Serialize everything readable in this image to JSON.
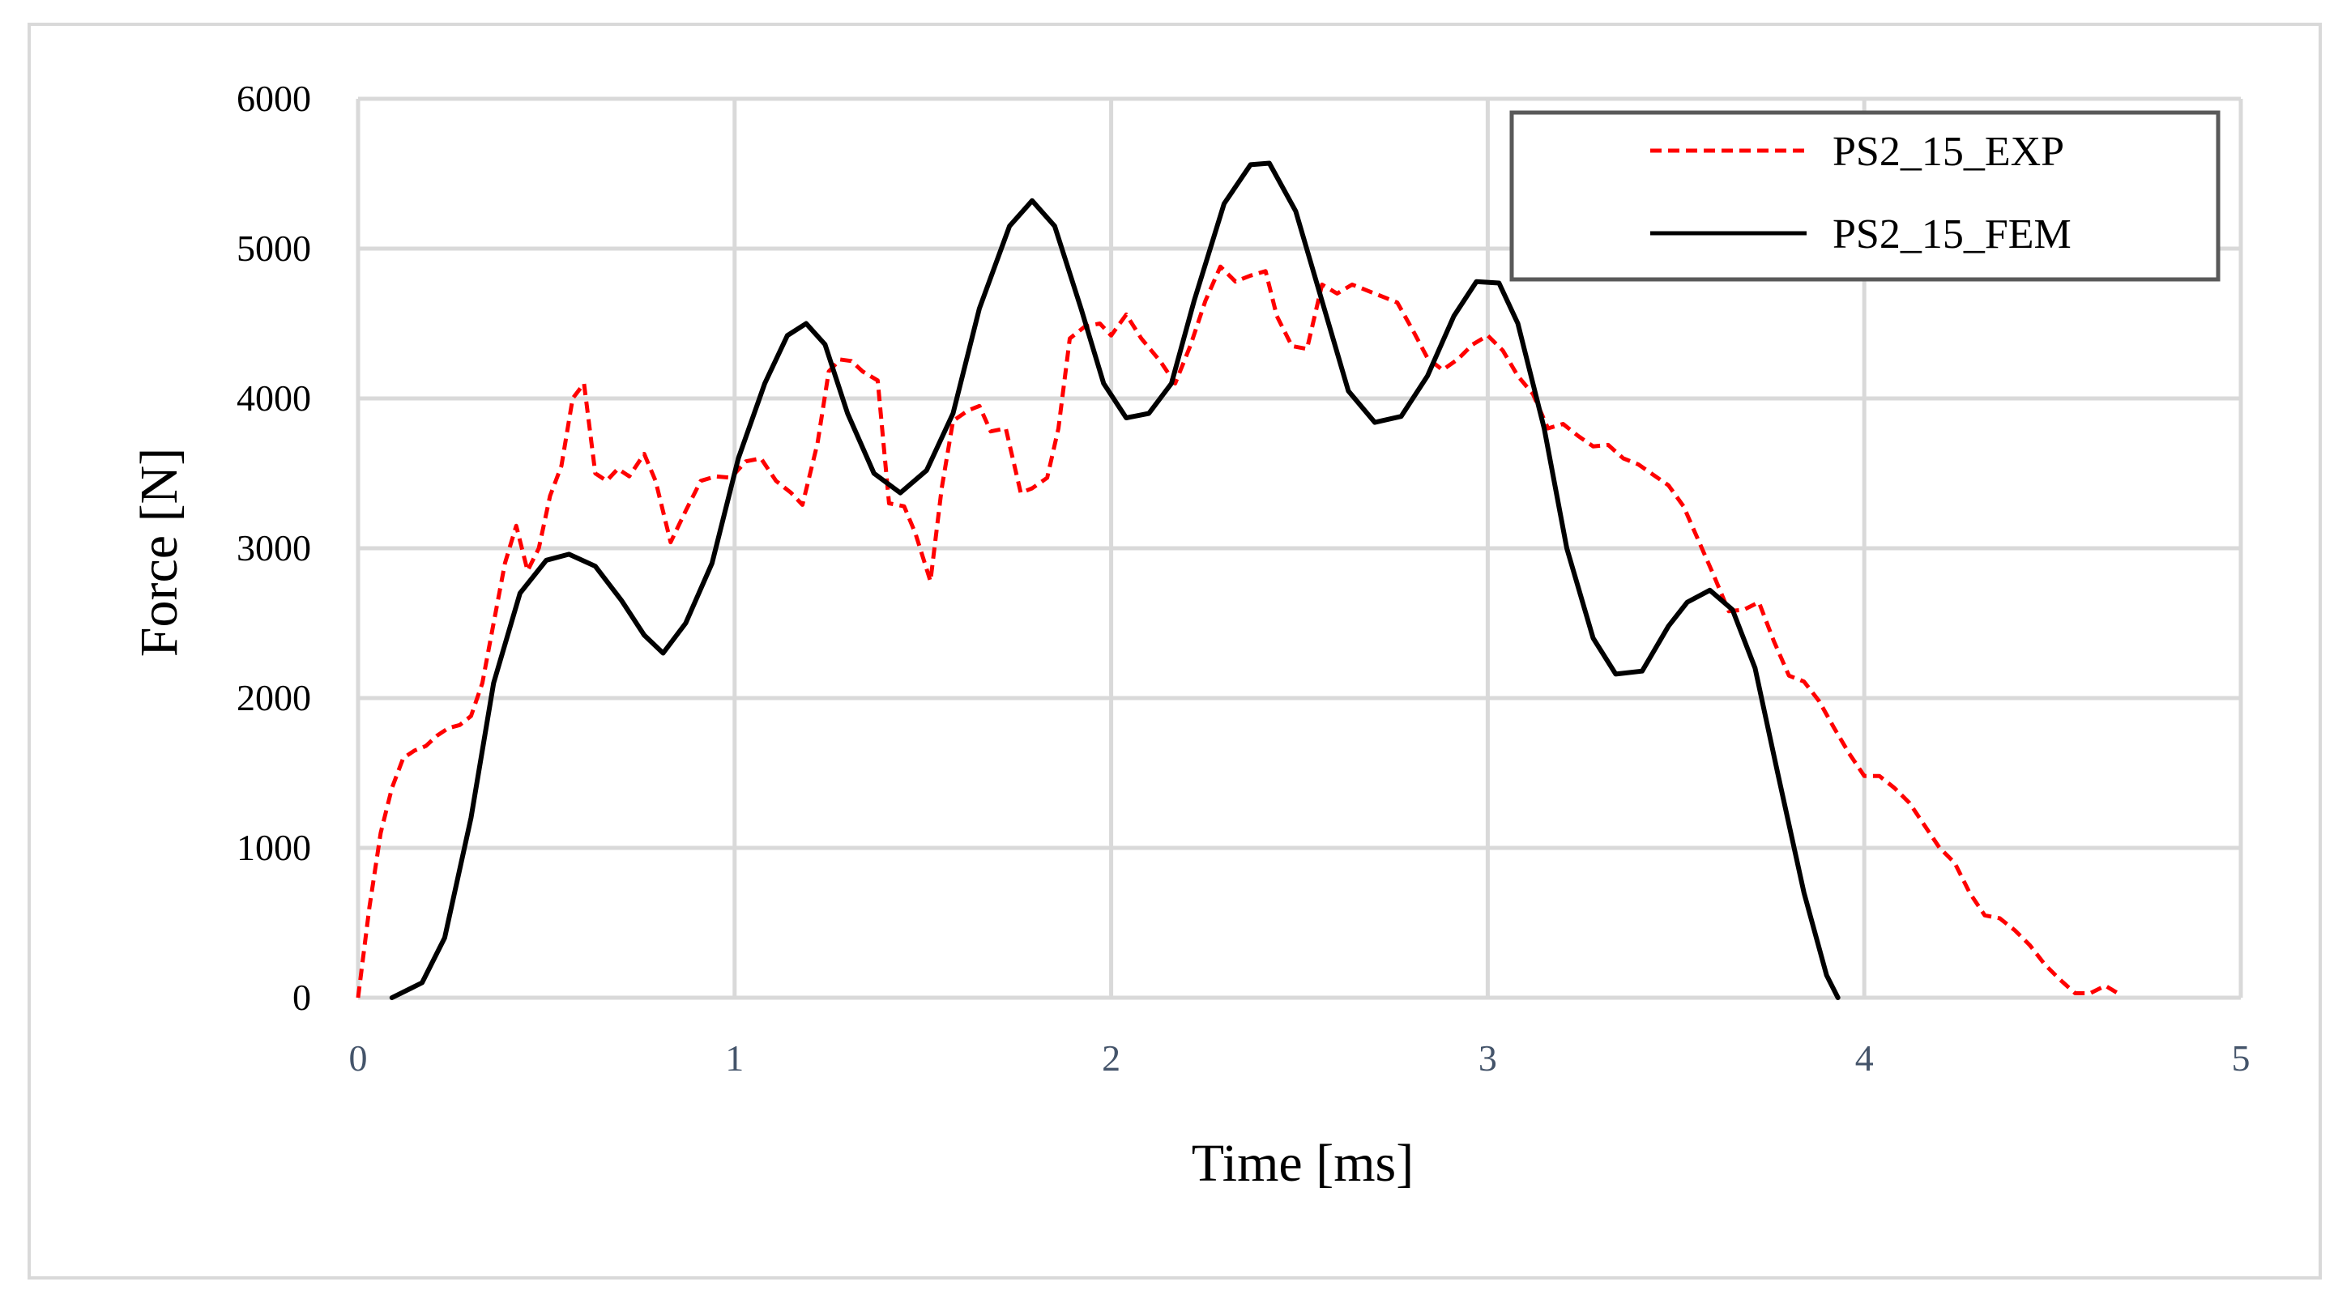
{
  "chart_data": {
    "type": "line",
    "title": "",
    "xlabel": "Time [ms]",
    "ylabel": "Force [N]",
    "xlim": [
      0,
      5
    ],
    "ylim": [
      0,
      6000
    ],
    "x_ticks": [
      "0",
      "1",
      "2",
      "3",
      "4",
      "5"
    ],
    "y_ticks": [
      "0",
      "1000",
      "2000",
      "3000",
      "4000",
      "5000",
      "6000"
    ],
    "grid": true,
    "legend_position": "top-right",
    "series": [
      {
        "name": "PS2_15_EXP",
        "color": "#ff0000",
        "style": "dashed",
        "points": [
          [
            0.0,
            0
          ],
          [
            0.03,
            600
          ],
          [
            0.06,
            1100
          ],
          [
            0.09,
            1400
          ],
          [
            0.12,
            1600
          ],
          [
            0.15,
            1650
          ],
          [
            0.18,
            1680
          ],
          [
            0.21,
            1750
          ],
          [
            0.24,
            1800
          ],
          [
            0.27,
            1820
          ],
          [
            0.3,
            1880
          ],
          [
            0.33,
            2100
          ],
          [
            0.36,
            2500
          ],
          [
            0.39,
            2900
          ],
          [
            0.42,
            3150
          ],
          [
            0.45,
            2850
          ],
          [
            0.48,
            3000
          ],
          [
            0.51,
            3350
          ],
          [
            0.54,
            3550
          ],
          [
            0.57,
            4000
          ],
          [
            0.6,
            4100
          ],
          [
            0.63,
            3500
          ],
          [
            0.66,
            3450
          ],
          [
            0.69,
            3530
          ],
          [
            0.72,
            3480
          ],
          [
            0.76,
            3630
          ],
          [
            0.79,
            3450
          ],
          [
            0.83,
            3040
          ],
          [
            0.87,
            3250
          ],
          [
            0.91,
            3450
          ],
          [
            0.95,
            3480
          ],
          [
            0.99,
            3470
          ],
          [
            1.03,
            3580
          ],
          [
            1.07,
            3600
          ],
          [
            1.11,
            3450
          ],
          [
            1.15,
            3370
          ],
          [
            1.18,
            3290
          ],
          [
            1.22,
            3700
          ],
          [
            1.25,
            4180
          ],
          [
            1.28,
            4260
          ],
          [
            1.31,
            4250
          ],
          [
            1.34,
            4180
          ],
          [
            1.38,
            4120
          ],
          [
            1.41,
            3300
          ],
          [
            1.45,
            3280
          ],
          [
            1.48,
            3100
          ],
          [
            1.52,
            2780
          ],
          [
            1.55,
            3400
          ],
          [
            1.58,
            3850
          ],
          [
            1.62,
            3920
          ],
          [
            1.65,
            3950
          ],
          [
            1.68,
            3780
          ],
          [
            1.72,
            3800
          ],
          [
            1.76,
            3370
          ],
          [
            1.79,
            3400
          ],
          [
            1.83,
            3470
          ],
          [
            1.86,
            3800
          ],
          [
            1.89,
            4400
          ],
          [
            1.93,
            4480
          ],
          [
            1.97,
            4500
          ],
          [
            2.0,
            4420
          ],
          [
            2.04,
            4560
          ],
          [
            2.08,
            4400
          ],
          [
            2.13,
            4250
          ],
          [
            2.17,
            4100
          ],
          [
            2.21,
            4350
          ],
          [
            2.25,
            4650
          ],
          [
            2.29,
            4880
          ],
          [
            2.33,
            4780
          ],
          [
            2.37,
            4820
          ],
          [
            2.41,
            4850
          ],
          [
            2.44,
            4550
          ],
          [
            2.48,
            4350
          ],
          [
            2.52,
            4330
          ],
          [
            2.56,
            4760
          ],
          [
            2.6,
            4700
          ],
          [
            2.64,
            4760
          ],
          [
            2.68,
            4720
          ],
          [
            2.72,
            4680
          ],
          [
            2.76,
            4640
          ],
          [
            2.8,
            4460
          ],
          [
            2.84,
            4270
          ],
          [
            2.88,
            4190
          ],
          [
            2.92,
            4260
          ],
          [
            2.96,
            4360
          ],
          [
            3.0,
            4420
          ],
          [
            3.04,
            4320
          ],
          [
            3.08,
            4150
          ],
          [
            3.12,
            4030
          ],
          [
            3.16,
            3800
          ],
          [
            3.2,
            3830
          ],
          [
            3.24,
            3750
          ],
          [
            3.28,
            3680
          ],
          [
            3.32,
            3690
          ],
          [
            3.36,
            3600
          ],
          [
            3.4,
            3560
          ],
          [
            3.44,
            3490
          ],
          [
            3.48,
            3420
          ],
          [
            3.52,
            3280
          ],
          [
            3.56,
            3050
          ],
          [
            3.6,
            2820
          ],
          [
            3.64,
            2580
          ],
          [
            3.68,
            2590
          ],
          [
            3.72,
            2640
          ],
          [
            3.76,
            2380
          ],
          [
            3.8,
            2150
          ],
          [
            3.84,
            2110
          ],
          [
            3.88,
            1980
          ],
          [
            3.92,
            1800
          ],
          [
            3.96,
            1630
          ],
          [
            4.0,
            1480
          ],
          [
            4.04,
            1480
          ],
          [
            4.08,
            1400
          ],
          [
            4.12,
            1300
          ],
          [
            4.16,
            1150
          ],
          [
            4.2,
            1000
          ],
          [
            4.24,
            900
          ],
          [
            4.28,
            700
          ],
          [
            4.32,
            550
          ],
          [
            4.36,
            530
          ],
          [
            4.4,
            450
          ],
          [
            4.44,
            350
          ],
          [
            4.48,
            220
          ],
          [
            4.52,
            120
          ],
          [
            4.56,
            30
          ],
          [
            4.6,
            30
          ],
          [
            4.64,
            80
          ],
          [
            4.68,
            20
          ]
        ]
      },
      {
        "name": "PS2_15_FEM",
        "color": "#000000",
        "style": "solid",
        "points": [
          [
            0.09,
            0
          ],
          [
            0.17,
            100
          ],
          [
            0.23,
            400
          ],
          [
            0.3,
            1200
          ],
          [
            0.36,
            2100
          ],
          [
            0.43,
            2700
          ],
          [
            0.5,
            2920
          ],
          [
            0.56,
            2960
          ],
          [
            0.63,
            2880
          ],
          [
            0.7,
            2650
          ],
          [
            0.76,
            2420
          ],
          [
            0.81,
            2300
          ],
          [
            0.87,
            2500
          ],
          [
            0.94,
            2900
          ],
          [
            1.01,
            3600
          ],
          [
            1.08,
            4100
          ],
          [
            1.14,
            4420
          ],
          [
            1.19,
            4500
          ],
          [
            1.24,
            4360
          ],
          [
            1.3,
            3900
          ],
          [
            1.37,
            3500
          ],
          [
            1.44,
            3370
          ],
          [
            1.51,
            3520
          ],
          [
            1.58,
            3900
          ],
          [
            1.65,
            4600
          ],
          [
            1.73,
            5150
          ],
          [
            1.79,
            5320
          ],
          [
            1.85,
            5150
          ],
          [
            1.92,
            4600
          ],
          [
            1.98,
            4100
          ],
          [
            2.04,
            3870
          ],
          [
            2.1,
            3900
          ],
          [
            2.16,
            4100
          ],
          [
            2.22,
            4650
          ],
          [
            2.3,
            5300
          ],
          [
            2.37,
            5560
          ],
          [
            2.42,
            5570
          ],
          [
            2.49,
            5250
          ],
          [
            2.56,
            4650
          ],
          [
            2.63,
            4050
          ],
          [
            2.7,
            3840
          ],
          [
            2.77,
            3880
          ],
          [
            2.84,
            4150
          ],
          [
            2.91,
            4550
          ],
          [
            2.97,
            4780
          ],
          [
            3.03,
            4770
          ],
          [
            3.08,
            4500
          ],
          [
            3.15,
            3800
          ],
          [
            3.21,
            3000
          ],
          [
            3.28,
            2400
          ],
          [
            3.34,
            2160
          ],
          [
            3.41,
            2180
          ],
          [
            3.48,
            2480
          ],
          [
            3.53,
            2640
          ],
          [
            3.59,
            2720
          ],
          [
            3.65,
            2590
          ],
          [
            3.71,
            2200
          ],
          [
            3.77,
            1500
          ],
          [
            3.84,
            700
          ],
          [
            3.9,
            150
          ],
          [
            3.93,
            0
          ]
        ]
      }
    ]
  }
}
